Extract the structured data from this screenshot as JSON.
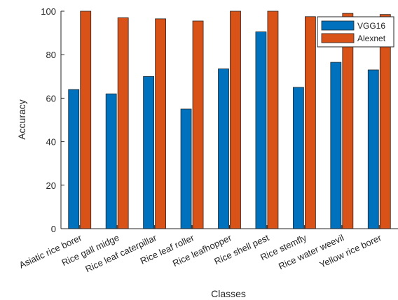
{
  "chart_data": {
    "type": "bar",
    "title": "",
    "xlabel": "Classes",
    "ylabel": "Accuracy",
    "ylim": [
      0,
      100
    ],
    "yticks": [
      0,
      20,
      40,
      60,
      80,
      100
    ],
    "grid": false,
    "legend_position": "top-right",
    "categories": [
      "Asiatic rice borer",
      "Rice gall midge",
      "Rice leaf caterpillar",
      "Rice leaf roller",
      "Rice leafhopper",
      "Rice shell pest",
      "Rice stemfly",
      "Rice water weevil",
      "Yellow rice borer"
    ],
    "series": [
      {
        "name": "VGG16",
        "color": "#0072BD",
        "values": [
          64,
          62,
          70,
          55,
          73.5,
          90.5,
          65,
          76.5,
          73
        ]
      },
      {
        "name": "Alexnet",
        "color": "#D95319",
        "values": [
          100,
          97,
          96.5,
          95.5,
          100,
          100,
          97.5,
          99,
          98.5
        ]
      }
    ]
  }
}
